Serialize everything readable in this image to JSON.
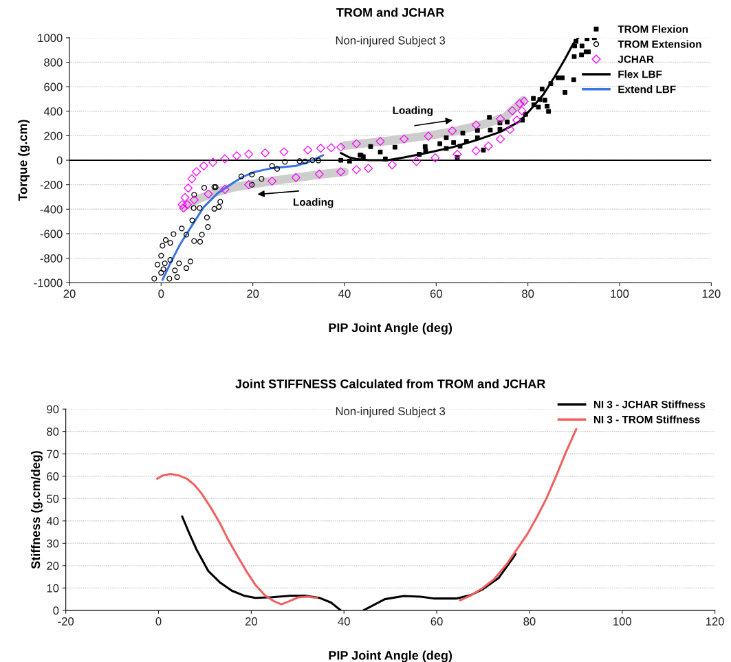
{
  "chart_data": [
    {
      "type": "scatter",
      "title": "TROM and JCHAR",
      "subtitle": "Non-injured Subject 3",
      "xlabel": "PIP Joint Angle (deg)",
      "ylabel": "Torque (g.cm)",
      "xlim": [
        -20,
        120
      ],
      "xticks": [
        {
          "value": -20,
          "label": "20"
        },
        0,
        20,
        40,
        60,
        80,
        100,
        120
      ],
      "ylim": [
        -1000,
        1000
      ],
      "yticks": [
        -1000,
        -800,
        -600,
        -400,
        -200,
        0,
        200,
        400,
        600,
        800,
        1000
      ],
      "grid": "y",
      "legend": "top right",
      "ref_lines": [
        {
          "axis": "y",
          "value": 0,
          "color": "#000000"
        }
      ],
      "annotations": [
        "Loading",
        "Loading"
      ],
      "series": [
        {
          "type": "line",
          "color": "#c0c0c0",
          "x": [
            40,
            45,
            50,
            55,
            60,
            65,
            70,
            75,
            79
          ],
          "values": [
            120,
            140,
            160,
            185,
            210,
            245,
            290,
            350,
            490
          ]
        },
        {
          "type": "line",
          "color": "#c0c0c0",
          "x": [
            5,
            8,
            12,
            16,
            20,
            25,
            30,
            35,
            40
          ],
          "values": [
            -380,
            -320,
            -260,
            -220,
            -195,
            -165,
            -140,
            -115,
            -95
          ]
        },
        {
          "type": "scatter",
          "name": "TROM Flexion",
          "color": "#000000",
          "marker": "square",
          "x": [
            90.5,
            90.2,
            91.8,
            92.9,
            94.5,
            90.1,
            91.7,
            92.7,
            93.2,
            90,
            88.1,
            87.5,
            86.6,
            85,
            83.1,
            81.2,
            82.6,
            83.7,
            84.2,
            84.5,
            82.3,
            81.3,
            79.5,
            78.8,
            75.5,
            73.9,
            73.9,
            71.8,
            71.6,
            69,
            69,
            70.3,
            66.6,
            65.2,
            63.8,
            62.2,
            62.2,
            60.8,
            57.7,
            57.6,
            56.3,
            51,
            47.8,
            48.9,
            45.7,
            44.1,
            43.4,
            64.6,
            65.8,
            39.2,
            41.1,
            43.6
          ],
          "values": [
            971,
            933,
            933,
            990,
            1000,
            846,
            860,
            885,
            885,
            658,
            554,
            673,
            673,
            625,
            581,
            504,
            496,
            490,
            442,
            398,
            433,
            452,
            375,
            327,
            311,
            304,
            250,
            246,
            350,
            244,
            183,
            83,
            154,
            115,
            144,
            183,
            96,
            135,
            77,
            111,
            48,
            106,
            67,
            10,
            111,
            29,
            42,
            23,
            221,
            0,
            -8,
            40
          ]
        },
        {
          "type": "scatter",
          "name": "TROM Extension",
          "color": "#000000",
          "marker": "circle",
          "x": [
            -1.5,
            0,
            0.3,
            1,
            2,
            2.7,
            -0.8,
            0.8,
            2,
            0,
            0.5,
            1.8,
            3.5,
            3,
            3.9,
            5.5,
            6.4,
            4.5,
            5.5,
            6.8,
            7.2,
            8.5,
            8.9,
            10.2,
            10,
            11.6,
            12.6,
            12.9,
            8.4,
            7.1,
            7.2,
            9.4,
            11.6,
            11.9,
            17.5,
            19.8,
            21.9,
            19.8,
            24.2,
            25.3,
            27,
            30.2,
            31.4,
            33,
            34.3
          ],
          "values": [
            -967,
            -779,
            -698,
            -651,
            -675,
            -603,
            -852,
            -842,
            -814,
            -919,
            -890,
            -967,
            -954,
            -900,
            -842,
            -881,
            -827,
            -558,
            -608,
            -491,
            -660,
            -666,
            -608,
            -545,
            -468,
            -397,
            -382,
            -340,
            -391,
            -391,
            -282,
            -225,
            -219,
            -219,
            -132,
            -117,
            -152,
            -200,
            -46,
            -71,
            -13,
            -8,
            -10,
            0,
            -2
          ]
        },
        {
          "type": "scatter",
          "name": "JCHAR",
          "color": "#ff00ff",
          "marker": "diamond",
          "x": [
            4.6,
            5.2,
            5.9,
            6.7,
            7.7,
            9.3,
            11.3,
            13.9,
            16.5,
            19.1,
            22.7,
            26.8,
            32,
            34.8,
            37.1,
            39.2,
            42.6,
            47.8,
            53,
            58.3,
            63.5,
            68.7,
            74,
            76.6,
            78.2,
            79.2,
            78.7,
            77.6,
            76.1,
            74,
            71.4,
            68.7,
            64.6,
            59.8,
            55.7,
            50.4,
            45.2,
            42.6,
            39.2,
            34.5,
            29.4,
            24.2,
            19.1,
            13.9,
            10.3,
            7.2,
            5.7,
            4.9
          ],
          "values": [
            -363,
            -305,
            -228,
            -152,
            -94,
            -46,
            -17,
            12,
            36,
            50,
            59,
            69,
            83,
            98,
            102,
            107,
            135,
            154,
            173,
            196,
            240,
            288,
            337,
            404,
            462,
            481,
            404,
            327,
            250,
            173,
            115,
            77,
            48,
            19,
            -10,
            -38,
            -67,
            -77,
            -94,
            -113,
            -142,
            -171,
            -200,
            -238,
            -276,
            -324,
            -363,
            -391
          ]
        },
        {
          "type": "line",
          "name": "Flex LBF",
          "color": "#000000",
          "x": [
            39.2,
            41.2,
            42.6,
            45.2,
            49.4,
            53,
            58.3,
            63.5,
            68.7,
            74,
            78.2,
            80.8,
            83.4,
            86,
            88.1,
            89.9,
            91
          ],
          "values": [
            59,
            21,
            10,
            0,
            0,
            23,
            62,
            106,
            163,
            231,
            317,
            423,
            538,
            692,
            827,
            952,
            1000
          ]
        },
        {
          "type": "line",
          "name": "Extend LBF",
          "color": "#3a75e0",
          "x": [
            0.3,
            2,
            4.1,
            6.7,
            9.3,
            12.4,
            15.5,
            18,
            20.6,
            24.2,
            29.4,
            32,
            35.3
          ],
          "values": [
            -977,
            -842,
            -689,
            -535,
            -382,
            -267,
            -190,
            -132,
            -94,
            -65,
            -46,
            -17,
            40
          ]
        }
      ]
    },
    {
      "type": "line",
      "title": "Joint STIFFNESS Calculated from TROM and JCHAR",
      "subtitle": "Non-injured Subject 3",
      "xlabel": "PIP Joint Angle (deg)",
      "ylabel": "Stiffness (g.cm/deg)",
      "xlim": [
        -20,
        120
      ],
      "xticks": [
        -20,
        0,
        20,
        40,
        60,
        80,
        100,
        120
      ],
      "ylim": [
        0,
        90
      ],
      "yticks": [
        0,
        10,
        20,
        30,
        40,
        50,
        60,
        70,
        80,
        90
      ],
      "grid": "y",
      "legend": "top right",
      "series": [
        {
          "name": "NI 3 - JCHAR Stiffness",
          "color": "#000000",
          "x": [
            5.1,
            6.6,
            8.2,
            10.7,
            13.3,
            15.8,
            18.4,
            20.9,
            24.5,
            28.6,
            31.6,
            34.7,
            37.2,
            39.3,
            41.7,
            44.2,
            48.8,
            52.9,
            56.5,
            59.6,
            64.2,
            67.3,
            69.8,
            73.4,
            76.5,
            77
          ],
          "values": [
            42,
            34.6,
            27.2,
            17.7,
            12.4,
            8.8,
            6.6,
            5.6,
            5.9,
            6.6,
            6.6,
            5.6,
            3.5,
            0,
            null,
            0,
            5,
            6.4,
            6.1,
            5.3,
            5.3,
            6.8,
            9.3,
            14.6,
            23.6,
            25.2
          ]
        },
        {
          "name": "NI 3 - TROM Stiffness",
          "color": "#f06060",
          "x": [
            -0.3,
            1,
            2.6,
            4.3,
            6.1,
            7.7,
            9.2,
            11.2,
            13.3,
            14.8,
            16.8,
            18.9,
            20.9,
            23,
            25,
            26.5,
            28.1,
            30.1,
            32.1,
            34.2,
            50,
            65,
            67.3,
            69.8,
            72.4,
            75,
            77.5,
            79.6,
            81.6,
            83.7,
            85.7,
            87.8,
            90.1
          ],
          "values": [
            58.9,
            60.4,
            61,
            60.4,
            58.9,
            56.2,
            52.5,
            46.2,
            38.8,
            32.5,
            25.1,
            17.7,
            11.4,
            6.6,
            4,
            2.7,
            4,
            5.8,
            6.1,
            5.6,
            null,
            4.5,
            6.6,
            9.8,
            14,
            20.4,
            27.9,
            34.3,
            41.7,
            50.2,
            59.8,
            70.4,
            81.1
          ]
        }
      ]
    }
  ]
}
